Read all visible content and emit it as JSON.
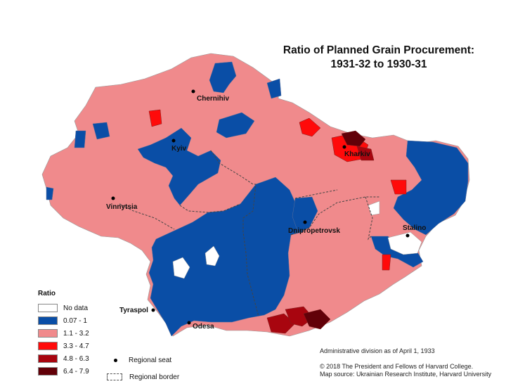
{
  "title_line1": "Ratio of Planned Grain Procurement:",
  "title_line2": "1931-32 to 1930-31",
  "colors": {
    "no_data": "#ffffff",
    "c1": "#0a4ea6",
    "c2": "#f08a8c",
    "c3": "#ff0a0a",
    "c4": "#a8050f",
    "c5": "#620008",
    "region_border": "#999999"
  },
  "cities": {
    "chernihiv": "Chernihiv",
    "kyiv": "Kyiv",
    "kharkiv": "Kharkiv",
    "vinnytsia": "Vinnytsia",
    "dnipropetrovsk": "Dnipropetrovsk",
    "stalino": "Stalino",
    "tyraspol": "Tyraspol",
    "odesa": "Odesa"
  },
  "legend": {
    "title": "Ratio",
    "items": [
      {
        "label": "No data",
        "color": "#ffffff"
      },
      {
        "label": "0.07 - 1",
        "color": "#0a4ea6"
      },
      {
        "label": "1.1 - 3.2",
        "color": "#f08a8c"
      },
      {
        "label": "3.3 - 4.7",
        "color": "#ff0a0a"
      },
      {
        "label": "4.8 - 6.3",
        "color": "#a8050f"
      },
      {
        "label": "6.4 - 7.9",
        "color": "#620008"
      }
    ],
    "seat_label": "Regional seat",
    "border_label": "Regional border"
  },
  "note": "Administrative division as of April 1, 1933",
  "credit1": "© 2018 The President and Fellows of Harvard College.",
  "credit2": "Map source: Ukrainian Research Institute, Harvard University"
}
